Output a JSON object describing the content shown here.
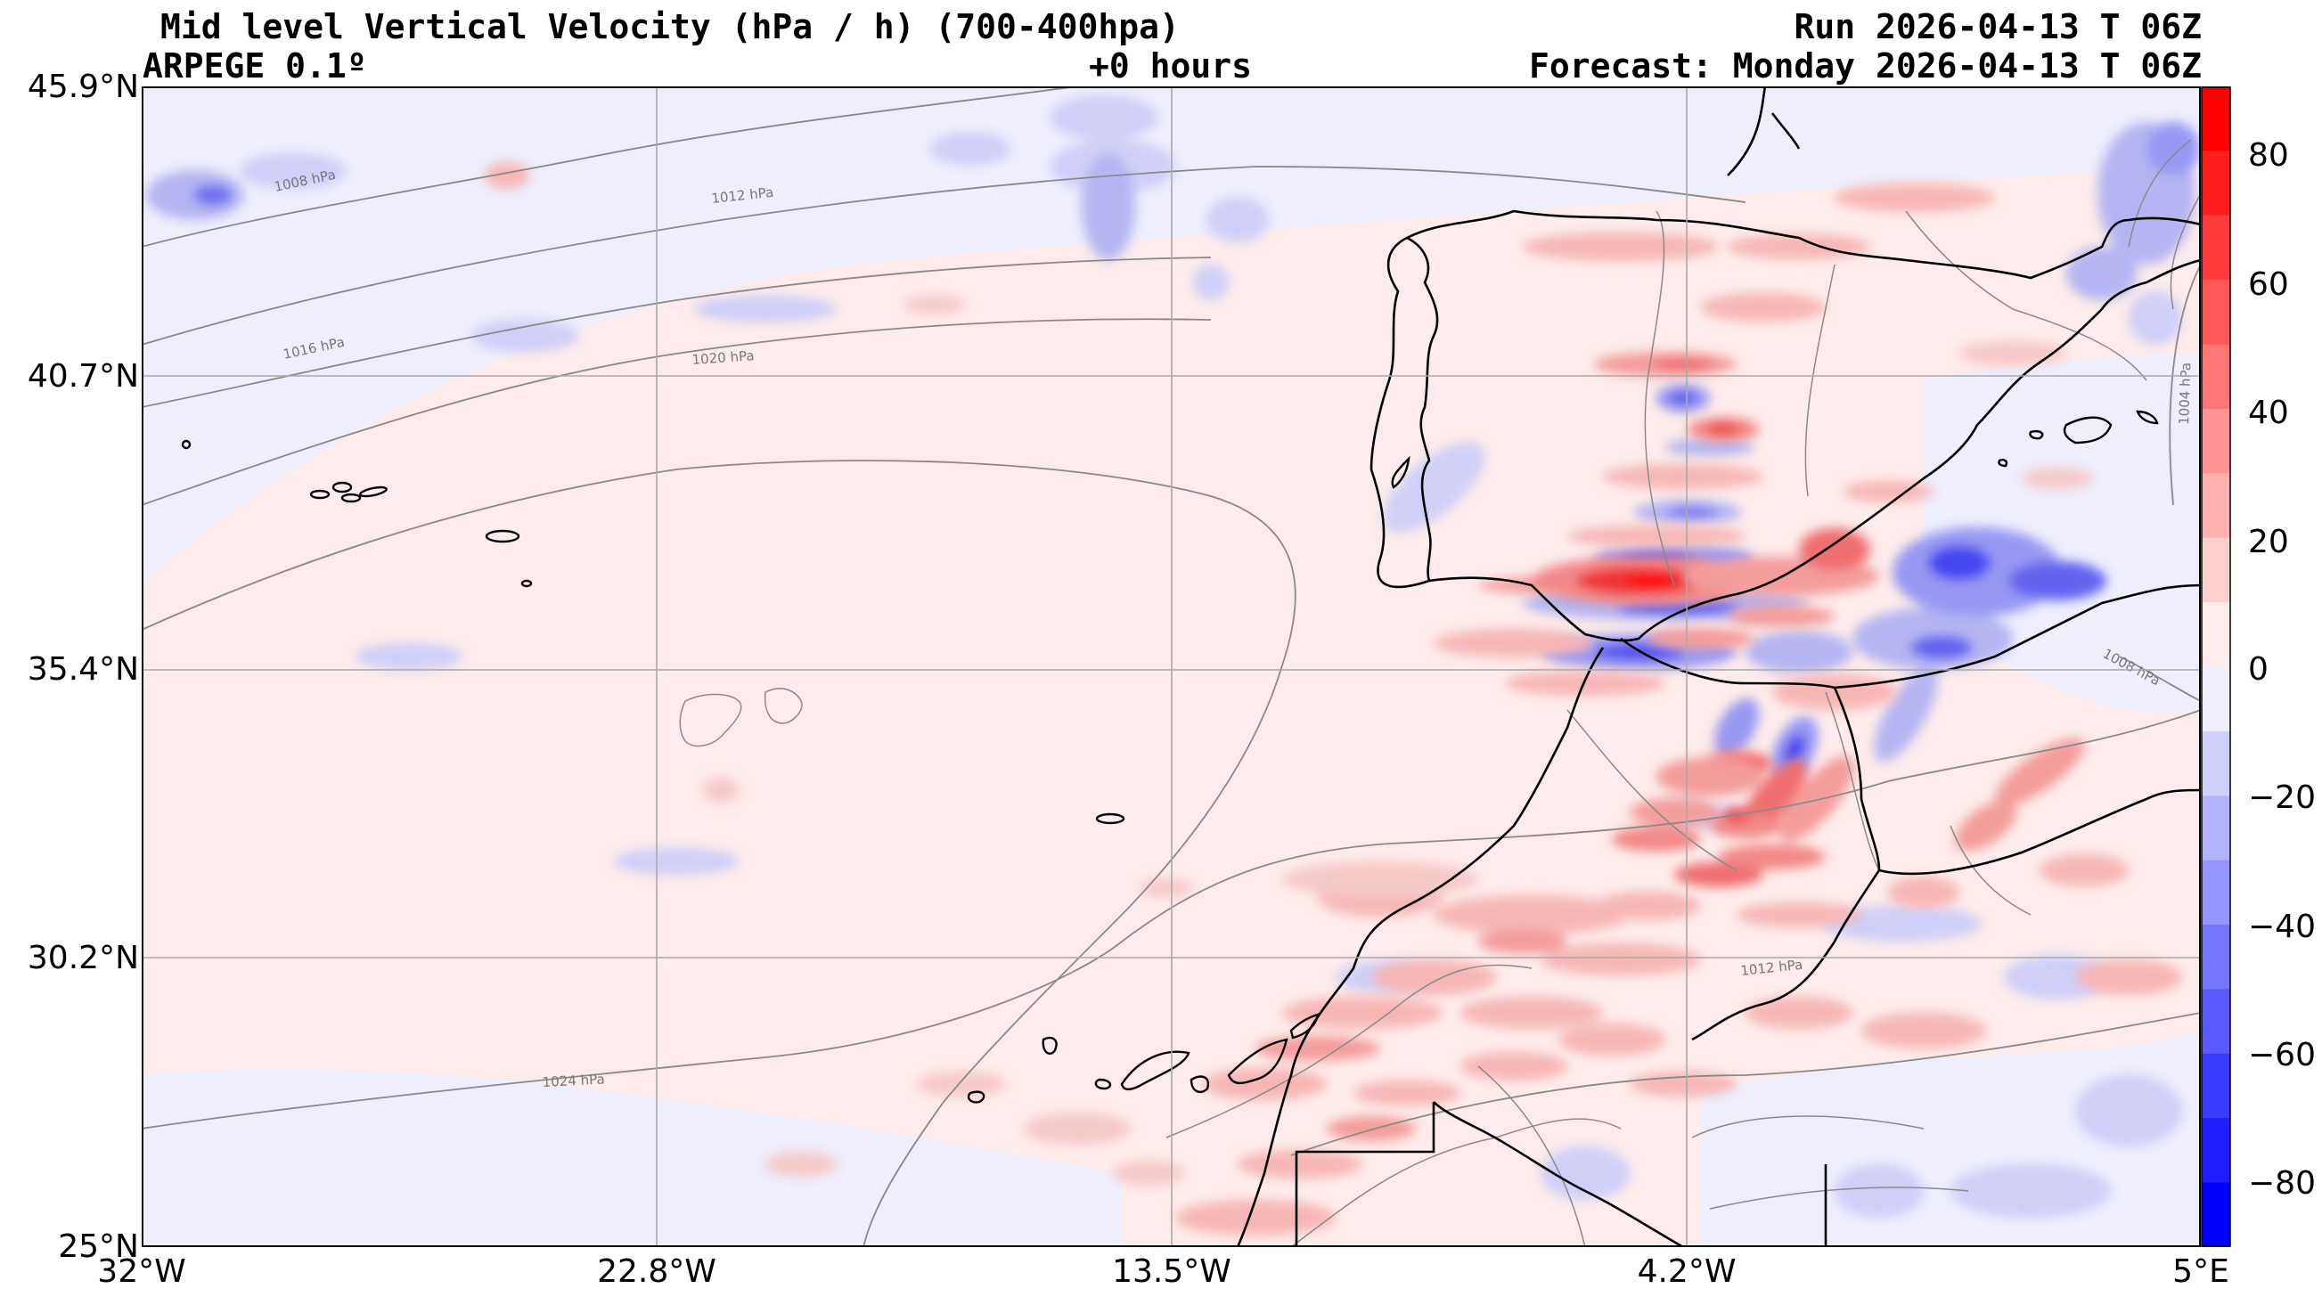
{
  "header": {
    "title": "Mid level Vertical Velocity (hPa / h)  (700-400hpa)",
    "model": "ARPEGE 0.1º",
    "lead": "+0 hours",
    "run": "Run 2026-04-13 T 06Z",
    "forecast": "Forecast: Monday 2026-04-13 T 06Z"
  },
  "map": {
    "lat_ticks": [
      "45.9°N",
      "40.7°N",
      "35.4°N",
      "30.2°N",
      "25°N"
    ],
    "lon_ticks": [
      "32°W",
      "22.8°W",
      "13.5°W",
      "4.2°W",
      "5°E"
    ],
    "extent": {
      "lon": [
        -32,
        5
      ],
      "lat": [
        25,
        45.9
      ]
    },
    "isobar_labels": [
      "1008 hPa",
      "1012 hPa",
      "1016 hPa",
      "1020 hPa",
      "1024 hPa",
      "1004 hPa",
      "1008 hPa",
      "1012 hPa"
    ],
    "grid": true
  },
  "colorbar": {
    "ticks": [
      "80",
      "60",
      "40",
      "20",
      "0",
      "−20",
      "−40",
      "−60",
      "−80"
    ],
    "range": [
      -90,
      90
    ],
    "positive_color": "#ff0000",
    "negative_color": "#0000ff"
  }
}
